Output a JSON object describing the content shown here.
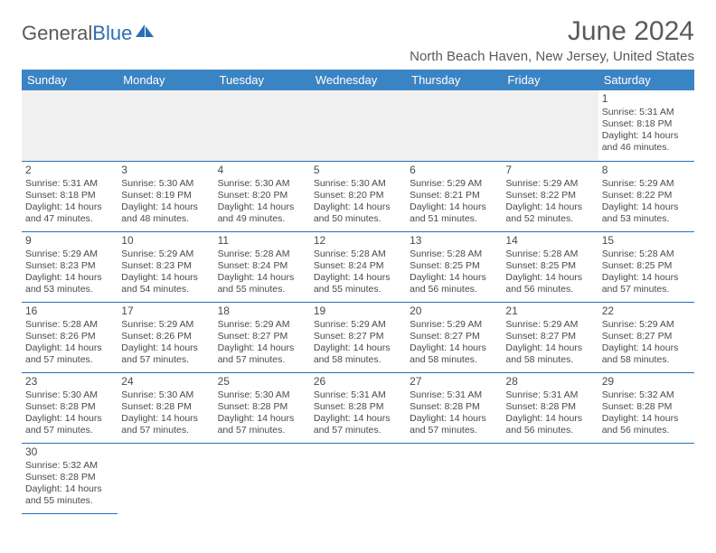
{
  "logo": {
    "text1": "General",
    "text2": "Blue"
  },
  "title": "June 2024",
  "location": "North Beach Haven, New Jersey, United States",
  "colors": {
    "header_bg": "#3b84c4",
    "border": "#2a6fb5",
    "text": "#4a4a4a",
    "muted_bg": "#f0f0f0"
  },
  "weekdays": [
    "Sunday",
    "Monday",
    "Tuesday",
    "Wednesday",
    "Thursday",
    "Friday",
    "Saturday"
  ],
  "weeks": [
    [
      null,
      null,
      null,
      null,
      null,
      null,
      {
        "d": "1",
        "sr": "Sunrise: 5:31 AM",
        "ss": "Sunset: 8:18 PM",
        "dl": "Daylight: 14 hours and 46 minutes."
      }
    ],
    [
      {
        "d": "2",
        "sr": "Sunrise: 5:31 AM",
        "ss": "Sunset: 8:18 PM",
        "dl": "Daylight: 14 hours and 47 minutes."
      },
      {
        "d": "3",
        "sr": "Sunrise: 5:30 AM",
        "ss": "Sunset: 8:19 PM",
        "dl": "Daylight: 14 hours and 48 minutes."
      },
      {
        "d": "4",
        "sr": "Sunrise: 5:30 AM",
        "ss": "Sunset: 8:20 PM",
        "dl": "Daylight: 14 hours and 49 minutes."
      },
      {
        "d": "5",
        "sr": "Sunrise: 5:30 AM",
        "ss": "Sunset: 8:20 PM",
        "dl": "Daylight: 14 hours and 50 minutes."
      },
      {
        "d": "6",
        "sr": "Sunrise: 5:29 AM",
        "ss": "Sunset: 8:21 PM",
        "dl": "Daylight: 14 hours and 51 minutes."
      },
      {
        "d": "7",
        "sr": "Sunrise: 5:29 AM",
        "ss": "Sunset: 8:22 PM",
        "dl": "Daylight: 14 hours and 52 minutes."
      },
      {
        "d": "8",
        "sr": "Sunrise: 5:29 AM",
        "ss": "Sunset: 8:22 PM",
        "dl": "Daylight: 14 hours and 53 minutes."
      }
    ],
    [
      {
        "d": "9",
        "sr": "Sunrise: 5:29 AM",
        "ss": "Sunset: 8:23 PM",
        "dl": "Daylight: 14 hours and 53 minutes."
      },
      {
        "d": "10",
        "sr": "Sunrise: 5:29 AM",
        "ss": "Sunset: 8:23 PM",
        "dl": "Daylight: 14 hours and 54 minutes."
      },
      {
        "d": "11",
        "sr": "Sunrise: 5:28 AM",
        "ss": "Sunset: 8:24 PM",
        "dl": "Daylight: 14 hours and 55 minutes."
      },
      {
        "d": "12",
        "sr": "Sunrise: 5:28 AM",
        "ss": "Sunset: 8:24 PM",
        "dl": "Daylight: 14 hours and 55 minutes."
      },
      {
        "d": "13",
        "sr": "Sunrise: 5:28 AM",
        "ss": "Sunset: 8:25 PM",
        "dl": "Daylight: 14 hours and 56 minutes."
      },
      {
        "d": "14",
        "sr": "Sunrise: 5:28 AM",
        "ss": "Sunset: 8:25 PM",
        "dl": "Daylight: 14 hours and 56 minutes."
      },
      {
        "d": "15",
        "sr": "Sunrise: 5:28 AM",
        "ss": "Sunset: 8:25 PM",
        "dl": "Daylight: 14 hours and 57 minutes."
      }
    ],
    [
      {
        "d": "16",
        "sr": "Sunrise: 5:28 AM",
        "ss": "Sunset: 8:26 PM",
        "dl": "Daylight: 14 hours and 57 minutes."
      },
      {
        "d": "17",
        "sr": "Sunrise: 5:29 AM",
        "ss": "Sunset: 8:26 PM",
        "dl": "Daylight: 14 hours and 57 minutes."
      },
      {
        "d": "18",
        "sr": "Sunrise: 5:29 AM",
        "ss": "Sunset: 8:27 PM",
        "dl": "Daylight: 14 hours and 57 minutes."
      },
      {
        "d": "19",
        "sr": "Sunrise: 5:29 AM",
        "ss": "Sunset: 8:27 PM",
        "dl": "Daylight: 14 hours and 58 minutes."
      },
      {
        "d": "20",
        "sr": "Sunrise: 5:29 AM",
        "ss": "Sunset: 8:27 PM",
        "dl": "Daylight: 14 hours and 58 minutes."
      },
      {
        "d": "21",
        "sr": "Sunrise: 5:29 AM",
        "ss": "Sunset: 8:27 PM",
        "dl": "Daylight: 14 hours and 58 minutes."
      },
      {
        "d": "22",
        "sr": "Sunrise: 5:29 AM",
        "ss": "Sunset: 8:27 PM",
        "dl": "Daylight: 14 hours and 58 minutes."
      }
    ],
    [
      {
        "d": "23",
        "sr": "Sunrise: 5:30 AM",
        "ss": "Sunset: 8:28 PM",
        "dl": "Daylight: 14 hours and 57 minutes."
      },
      {
        "d": "24",
        "sr": "Sunrise: 5:30 AM",
        "ss": "Sunset: 8:28 PM",
        "dl": "Daylight: 14 hours and 57 minutes."
      },
      {
        "d": "25",
        "sr": "Sunrise: 5:30 AM",
        "ss": "Sunset: 8:28 PM",
        "dl": "Daylight: 14 hours and 57 minutes."
      },
      {
        "d": "26",
        "sr": "Sunrise: 5:31 AM",
        "ss": "Sunset: 8:28 PM",
        "dl": "Daylight: 14 hours and 57 minutes."
      },
      {
        "d": "27",
        "sr": "Sunrise: 5:31 AM",
        "ss": "Sunset: 8:28 PM",
        "dl": "Daylight: 14 hours and 57 minutes."
      },
      {
        "d": "28",
        "sr": "Sunrise: 5:31 AM",
        "ss": "Sunset: 8:28 PM",
        "dl": "Daylight: 14 hours and 56 minutes."
      },
      {
        "d": "29",
        "sr": "Sunrise: 5:32 AM",
        "ss": "Sunset: 8:28 PM",
        "dl": "Daylight: 14 hours and 56 minutes."
      }
    ],
    [
      {
        "d": "30",
        "sr": "Sunrise: 5:32 AM",
        "ss": "Sunset: 8:28 PM",
        "dl": "Daylight: 14 hours and 55 minutes."
      },
      null,
      null,
      null,
      null,
      null,
      null
    ]
  ]
}
